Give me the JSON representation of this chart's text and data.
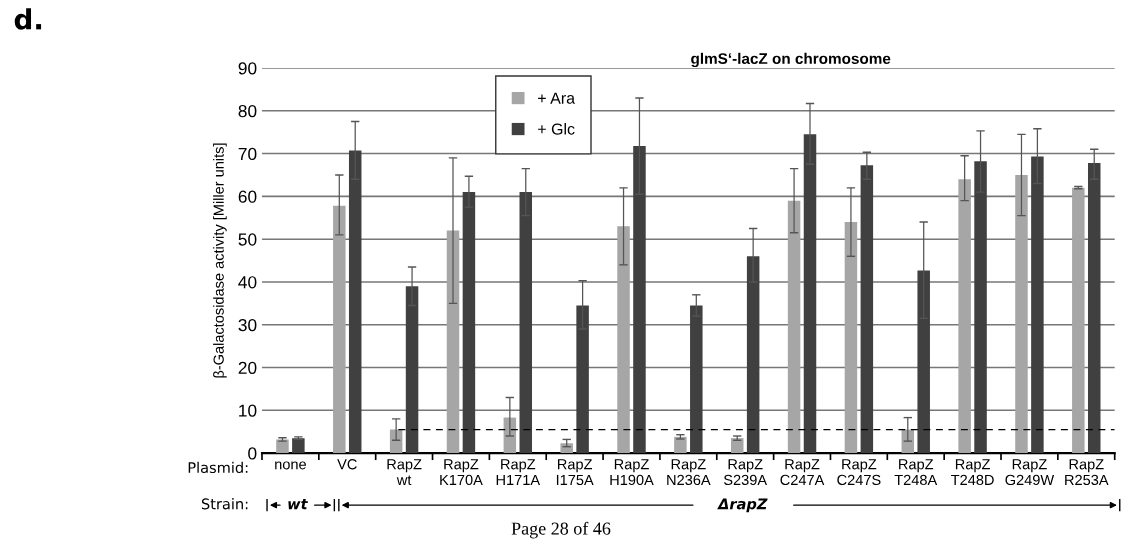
{
  "chart_data": {
    "type": "bar",
    "title": "glmS‘-lacZ on chromosome",
    "ylabel": "β-Galactosidase activity [Miller units]",
    "categories": [
      "none",
      "VC",
      "RapZ\nwt",
      "RapZ\nK170A",
      "RapZ\nH171A",
      "RapZ\nI175A",
      "RapZ\nH190A",
      "RapZ\nN236A",
      "RapZ\nS239A",
      "RapZ\nC247A",
      "RapZ\nC247S",
      "RapZ\nT248A",
      "RapZ\nT248D",
      "RapZ\nG249W",
      "RapZ\nR253A"
    ],
    "series": [
      {
        "name": "+ Ara",
        "color": "#a6a6a6",
        "values": [
          3.2,
          57.8,
          5.5,
          52,
          8.3,
          2.3,
          53,
          3.8,
          3.5,
          59,
          54,
          5.5,
          64,
          65,
          62
        ],
        "errors": [
          [
            2.8,
            3.6
          ],
          [
            51,
            65
          ],
          [
            3,
            8
          ],
          [
            35,
            69
          ],
          [
            4,
            13
          ],
          [
            1.5,
            3.2
          ],
          [
            44,
            62
          ],
          [
            3.3,
            4.3
          ],
          [
            3,
            4
          ],
          [
            51.5,
            66.5
          ],
          [
            46,
            62
          ],
          [
            2.8,
            8.3
          ],
          [
            59,
            69.5
          ],
          [
            55.5,
            74.5
          ],
          [
            61.8,
            62.3
          ]
        ]
      },
      {
        "name": "+ Glc",
        "color": "#404040",
        "values": [
          3.5,
          70.7,
          39,
          61,
          61,
          34.5,
          71.8,
          34.5,
          46,
          74.5,
          67.3,
          42.7,
          68.2,
          69.3,
          67.8
        ],
        "errors": [
          [
            3.2,
            3.8
          ],
          [
            64,
            77.5
          ],
          [
            34.5,
            43.5
          ],
          [
            57.5,
            64.7
          ],
          [
            55.5,
            66.5
          ],
          [
            29,
            40.3
          ],
          [
            60.5,
            83
          ],
          [
            32,
            37
          ],
          [
            40,
            52.5
          ],
          [
            67.5,
            81.7
          ],
          [
            64,
            70.3
          ],
          [
            31.5,
            54
          ],
          [
            61,
            75.3
          ],
          [
            63,
            75.8
          ],
          [
            64,
            71
          ]
        ]
      }
    ],
    "ylim": [
      0,
      90
    ],
    "yticks": [
      0,
      10,
      20,
      30,
      40,
      50,
      60,
      70,
      80,
      90
    ],
    "grid": "y",
    "legend": "top",
    "ref_lines": [
      {
        "axis": "y",
        "value": 5.5,
        "color": "#000000",
        "line_style": "dashed"
      }
    ],
    "annotations": [
      "d.",
      "Plasmid:",
      "Strain:",
      "wt",
      "ΔrapZ",
      "Page 28 of 46"
    ]
  }
}
